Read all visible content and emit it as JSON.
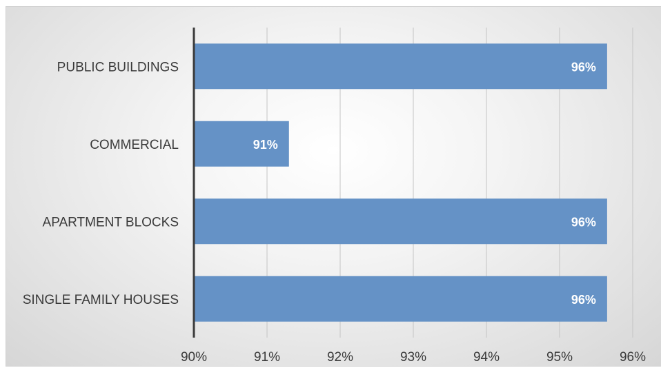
{
  "chart_data": {
    "type": "bar",
    "orientation": "horizontal",
    "categories": [
      "PUBLIC BUILDINGS",
      "COMMERCIAL",
      "APARTMENT BLOCKS",
      "SINGLE FAMILY HOUSES"
    ],
    "values": [
      95.65,
      91.3,
      95.65,
      95.65
    ],
    "data_labels": [
      "96%",
      "91%",
      "96%",
      "96%"
    ],
    "xlim": [
      90,
      96
    ],
    "x_ticks": [
      90,
      91,
      92,
      93,
      94,
      95,
      96
    ],
    "x_tick_labels": [
      "90%",
      "91%",
      "92%",
      "93%",
      "94%",
      "95%",
      "96%"
    ],
    "grid": true,
    "bar_color": "#6592c6",
    "title": "",
    "xlabel": "",
    "ylabel": ""
  }
}
